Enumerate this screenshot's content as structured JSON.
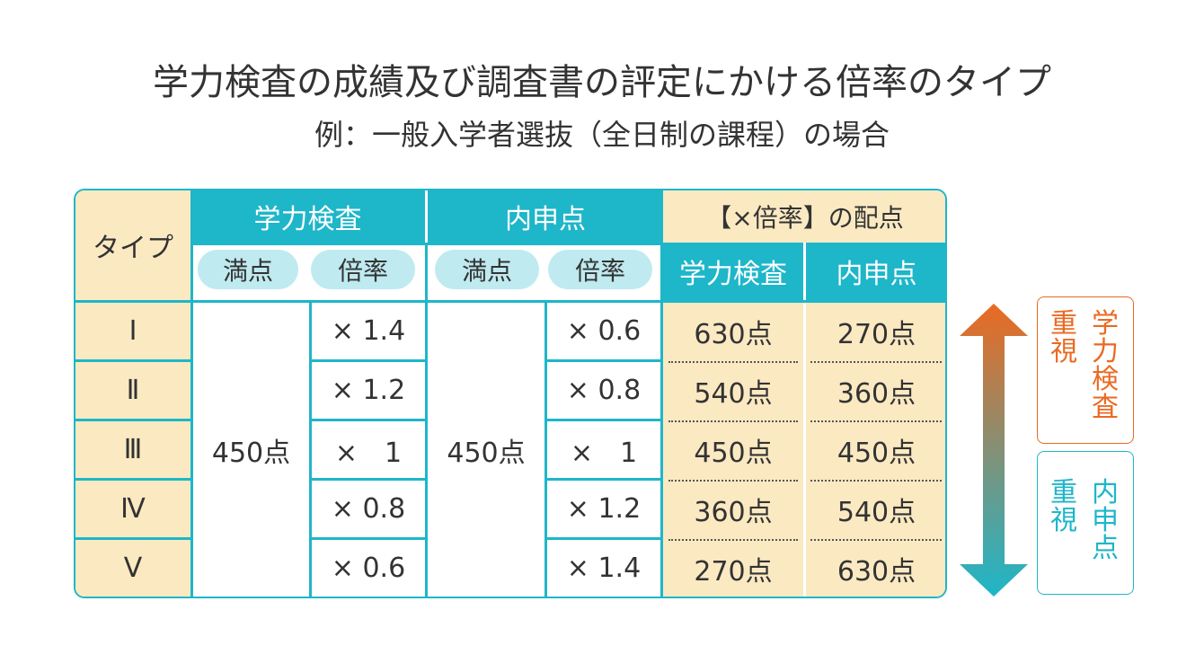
{
  "title": "学力検査の成績及び調査書の評定にかける倍率のタイプ",
  "subtitle": "例：一般入学者選抜（全日制の課程）の場合",
  "table": {
    "header": {
      "type_label": "タイプ",
      "gakuryoku": "学力検査",
      "naishin": "内申点",
      "haiten": "【×倍率】の配点",
      "mante": "満点",
      "bairitsu": "倍率",
      "haiten_gakuryoku": "学力検査",
      "haiten_naishin": "内申点"
    },
    "gakuryoku_full": "450点",
    "naishin_full": "450点",
    "rows": [
      {
        "type": "Ⅰ",
        "g_rate": "× 1.4",
        "n_rate": "× 0.6",
        "g_score": "630点",
        "n_score": "270点"
      },
      {
        "type": "Ⅱ",
        "g_rate": "× 1.2",
        "n_rate": "× 0.8",
        "g_score": "540点",
        "n_score": "360点"
      },
      {
        "type": "Ⅲ",
        "g_rate": "×　1",
        "n_rate": "×　1",
        "g_score": "450点",
        "n_score": "450点"
      },
      {
        "type": "Ⅳ",
        "g_rate": "× 0.8",
        "n_rate": "× 1.2",
        "g_score": "360点",
        "n_score": "540点"
      },
      {
        "type": "Ⅴ",
        "g_rate": "× 0.6",
        "n_rate": "× 1.4",
        "g_score": "270点",
        "n_score": "630点"
      }
    ]
  },
  "side": {
    "top": {
      "a": "重視",
      "b": "学力検査"
    },
    "bottom": {
      "a": "重視",
      "b": "内申点"
    },
    "colors": {
      "orange": "#ea6a22",
      "teal": "#1eb6c9"
    }
  }
}
